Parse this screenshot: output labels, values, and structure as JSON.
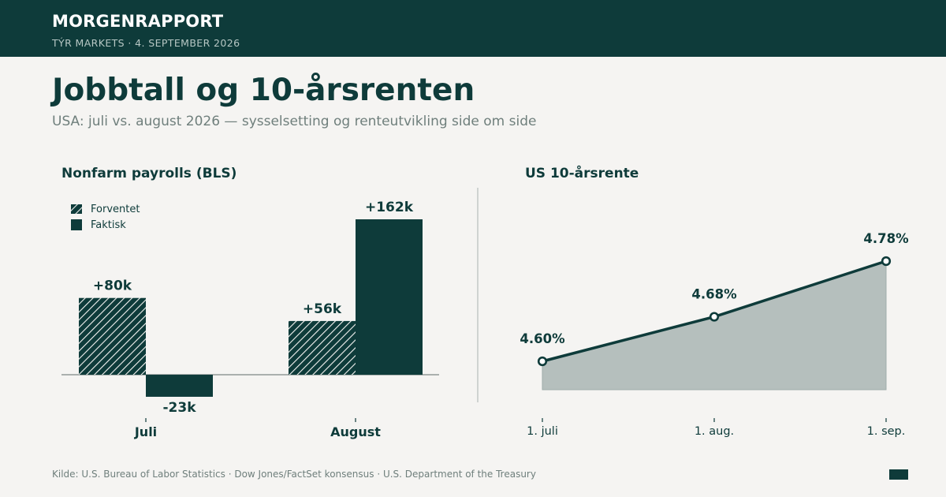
{
  "header": {
    "brand": "MORGENRAPPORT",
    "subbrand": "TÝR MARKETS  ·  4. SEPTEMBER 2026"
  },
  "headline": "Jobbtall og 10-årsrenten",
  "subtitle": "USA: juli vs. august 2026 — sysselsetting og renteutvikling side om side",
  "footer": {
    "source": "Kilde: U.S. Bureau of Labor Statistics · Dow Jones/FactSet konsensus · U.S. Department of the Treasury"
  },
  "colors": {
    "primary": "#0e3b3a",
    "area_fill": "#b5bfbd",
    "background": "#f5f4f2"
  },
  "chart_data": [
    {
      "type": "bar",
      "title": "Nonfarm payrolls (BLS)",
      "categories": [
        "Juli",
        "August"
      ],
      "series": [
        {
          "name": "Forventet",
          "pattern": "hatched",
          "values": [
            80,
            56
          ],
          "labels": [
            "+80k",
            "+56k"
          ]
        },
        {
          "name": "Faktisk",
          "pattern": "solid",
          "values": [
            -23,
            162
          ],
          "labels": [
            "-23k",
            "+162k"
          ]
        }
      ],
      "unit": "k",
      "legend": "top-left"
    },
    {
      "type": "area",
      "title": "US 10-årsrente",
      "x": [
        "1. juli",
        "1. aug.",
        "1. sep."
      ],
      "values": [
        4.6,
        4.68,
        4.78
      ],
      "labels": [
        "4.60%",
        "4.68%",
        "4.78%"
      ],
      "unit": "%",
      "markers": true
    }
  ]
}
